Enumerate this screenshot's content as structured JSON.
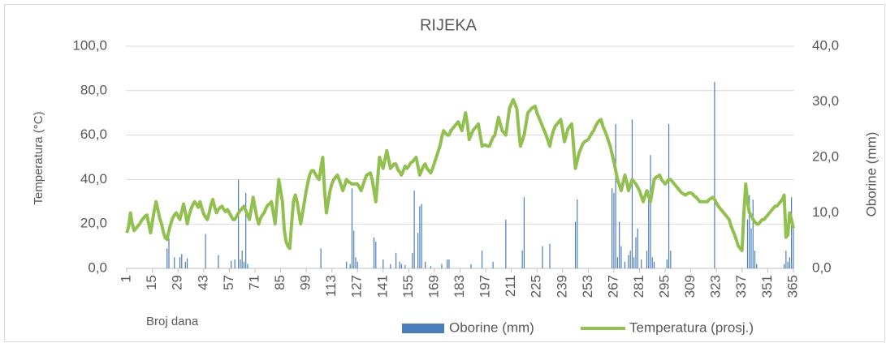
{
  "chart_data": {
    "type": "combo",
    "title": "RIJEKA",
    "y_label": "Temperatura (°C)",
    "y2_label": "Oborine (mm)",
    "x_label": "Broj dana",
    "grid": true,
    "legend": "bottom",
    "xlim": [
      0.5,
      365.5
    ],
    "xticks": [
      1,
      15,
      29,
      43,
      57,
      71,
      85,
      99,
      113,
      127,
      141,
      155,
      169,
      183,
      197,
      211,
      225,
      239,
      253,
      267,
      281,
      295,
      309,
      323,
      337,
      351,
      365
    ],
    "ylim": [
      0,
      100
    ],
    "yticks": [
      {
        "value": 0,
        "label": "0,0"
      },
      {
        "value": 20,
        "label": "20,0"
      },
      {
        "value": 40,
        "label": "40,0"
      },
      {
        "value": 60,
        "label": "60,0"
      },
      {
        "value": 80,
        "label": "80,0"
      },
      {
        "value": 100,
        "label": "100,0"
      }
    ],
    "y2lim": [
      0,
      40
    ],
    "y2ticks": [
      {
        "value": 0,
        "label": "0,0"
      },
      {
        "value": 10,
        "label": "10,0"
      },
      {
        "value": 20,
        "label": "20,0"
      },
      {
        "value": 30,
        "label": "30,0"
      },
      {
        "value": 40,
        "label": "40,0"
      }
    ],
    "x": [
      1,
      2,
      3,
      4,
      5,
      6,
      7,
      8,
      9,
      10,
      11,
      12,
      13,
      14,
      15,
      16,
      17,
      18,
      19,
      20,
      21,
      22,
      23,
      24,
      25,
      26,
      27,
      28,
      29,
      30,
      31,
      32,
      33,
      34,
      35,
      36,
      37,
      38,
      39,
      40,
      41,
      42,
      43,
      44,
      45,
      46,
      47,
      48,
      49,
      50,
      51,
      52,
      53,
      54,
      55,
      56,
      57,
      58,
      59,
      60,
      61,
      62,
      63,
      64,
      65,
      66,
      67,
      68,
      69,
      70,
      71,
      72,
      73,
      74,
      75,
      76,
      77,
      78,
      79,
      80,
      81,
      82,
      83,
      84,
      85,
      86,
      87,
      88,
      89,
      90,
      91,
      92,
      93,
      94,
      95,
      96,
      97,
      98,
      99,
      100,
      101,
      102,
      103,
      104,
      105,
      106,
      107,
      108,
      109,
      110,
      111,
      112,
      113,
      114,
      115,
      116,
      117,
      118,
      119,
      120,
      121,
      122,
      123,
      124,
      125,
      126,
      127,
      128,
      129,
      130,
      131,
      132,
      133,
      134,
      135,
      136,
      137,
      138,
      139,
      140,
      141,
      142,
      143,
      144,
      145,
      146,
      147,
      148,
      149,
      150,
      151,
      152,
      153,
      154,
      155,
      156,
      157,
      158,
      159,
      160,
      161,
      162,
      163,
      164,
      165,
      166,
      167,
      168,
      169,
      170,
      171,
      172,
      173,
      174,
      175,
      176,
      177,
      178,
      179,
      180,
      181,
      182,
      183,
      184,
      185,
      186,
      187,
      188,
      189,
      190,
      191,
      192,
      193,
      194,
      195,
      196,
      197,
      198,
      199,
      200,
      201,
      202,
      203,
      204,
      205,
      206,
      207,
      208,
      209,
      210,
      211,
      212,
      213,
      214,
      215,
      216,
      217,
      218,
      219,
      220,
      221,
      222,
      223,
      224,
      225,
      226,
      227,
      228,
      229,
      230,
      231,
      232,
      233,
      234,
      235,
      236,
      237,
      238,
      239,
      240,
      241,
      242,
      243,
      244,
      245,
      246,
      247,
      248,
      249,
      250,
      251,
      252,
      253,
      254,
      255,
      256,
      257,
      258,
      259,
      260,
      261,
      262,
      263,
      264,
      265,
      266,
      267,
      268,
      269,
      270,
      271,
      272,
      273,
      274,
      275,
      276,
      277,
      278,
      279,
      280,
      281,
      282,
      283,
      284,
      285,
      286,
      287,
      288,
      289,
      290,
      291,
      292,
      293,
      294,
      295,
      296,
      297,
      298,
      299,
      300,
      301,
      302,
      303,
      304,
      305,
      306,
      307,
      308,
      309,
      310,
      311,
      312,
      313,
      314,
      315,
      316,
      317,
      318,
      319,
      320,
      321,
      322,
      323,
      324,
      325,
      326,
      327,
      328,
      329,
      330,
      331,
      332,
      333,
      334,
      335,
      336,
      337,
      338,
      339,
      340,
      341,
      342,
      343,
      344,
      345,
      346,
      347,
      348,
      349,
      350,
      351,
      352,
      353,
      354,
      355,
      356,
      357,
      358,
      359,
      360,
      361,
      362,
      363,
      364,
      365
    ],
    "series": [
      {
        "name": "Oborine (mm)",
        "type": "bar",
        "color": "#4a7ebb",
        "values": [
          0,
          0,
          0,
          0,
          0,
          0,
          0,
          0,
          0,
          0,
          0,
          0,
          0,
          0,
          0,
          0,
          0,
          0,
          0,
          0,
          0,
          0,
          9,
          13.5,
          0,
          0,
          5,
          0,
          0,
          5,
          6.5,
          0,
          3,
          4.5,
          0,
          0,
          0,
          0,
          0,
          0,
          0,
          0,
          0,
          15.5,
          0,
          0,
          0,
          0,
          0,
          0,
          6,
          0,
          0,
          0,
          0,
          0,
          0,
          3.5,
          0,
          4,
          0,
          40,
          4,
          8,
          3,
          34,
          2,
          0,
          0,
          0,
          0,
          0,
          0,
          0,
          0,
          0,
          0,
          0,
          0,
          0,
          0,
          0,
          0,
          0,
          0,
          0,
          0,
          0,
          0,
          0,
          0,
          0,
          0,
          0,
          0,
          0,
          0,
          0,
          0,
          0,
          0,
          0,
          0,
          0,
          0,
          0,
          9,
          0,
          0,
          0,
          0,
          0,
          0,
          0,
          0,
          0,
          0,
          0,
          0,
          0,
          3,
          0,
          2,
          36,
          17,
          5,
          3,
          0,
          0,
          0,
          0,
          0,
          0,
          0,
          0,
          14,
          12,
          0,
          0,
          0,
          4,
          0,
          0,
          0,
          2,
          0,
          0,
          7,
          0,
          3,
          2,
          0,
          1.5,
          0,
          0,
          0,
          7,
          35,
          0,
          16,
          28,
          29,
          0,
          3,
          0,
          0,
          1,
          0,
          0,
          0,
          0,
          0,
          2,
          0,
          0,
          4,
          4,
          0,
          0,
          0,
          0,
          0,
          0,
          0,
          0,
          0,
          0,
          0,
          2,
          0,
          0,
          0,
          0,
          0,
          8,
          0,
          0,
          0,
          0,
          0,
          3,
          0,
          0,
          0,
          0,
          0,
          0,
          22,
          0,
          0,
          0,
          0,
          0,
          0,
          0,
          0,
          8,
          32,
          0,
          0,
          0,
          0,
          0,
          0,
          0,
          0,
          0,
          10,
          0,
          0,
          0,
          11,
          0,
          0,
          0,
          0,
          0,
          0,
          0,
          0,
          0,
          0,
          0,
          0,
          0,
          21,
          31,
          0,
          0,
          0,
          0,
          0,
          0,
          0,
          0,
          0,
          0,
          0,
          0,
          0,
          0,
          0,
          0,
          0,
          0,
          36,
          34,
          65,
          5,
          21,
          10,
          0,
          3,
          0,
          6,
          8,
          67,
          5,
          14,
          18,
          0,
          4,
          0,
          0,
          8,
          35,
          51,
          5,
          3,
          0,
          0,
          0,
          0,
          0,
          0,
          4,
          65,
          8,
          0,
          0,
          0,
          0,
          0,
          0,
          0,
          0,
          0,
          0,
          0,
          0,
          0,
          0,
          0,
          0,
          0,
          0,
          0,
          0,
          0,
          0,
          0,
          84,
          0,
          0,
          0,
          0,
          0,
          0,
          0,
          0,
          0,
          0,
          0,
          0,
          0,
          0,
          0,
          0,
          0,
          22,
          33,
          18,
          31,
          8,
          2,
          0,
          0,
          0,
          0,
          0,
          0,
          0,
          0,
          0,
          0,
          0,
          0,
          0,
          0,
          2,
          8,
          3,
          5,
          32,
          18
        ]
      },
      {
        "name": "Temperatura (prosj.)",
        "type": "line",
        "axis": "y2",
        "color": "#92c050",
        "values": [
          6.4,
          7.5,
          10.0,
          8.0,
          6.8,
          7.2,
          7.6,
          8.0,
          8.6,
          9.0,
          9.4,
          9.6,
          8.0,
          6.4,
          8.5,
          10.4,
          12.0,
          10.5,
          9.0,
          8.0,
          6.5,
          5.5,
          5.2,
          6.8,
          8.0,
          9.0,
          9.6,
          10.0,
          9.4,
          8.8,
          10.2,
          11.6,
          10.0,
          8.0,
          9.5,
          10.6,
          11.4,
          12.0,
          11.6,
          11.0,
          12.0,
          10.8,
          9.8,
          9.2,
          8.8,
          10.0,
          11.5,
          12.4,
          11.0,
          10.0,
          10.6,
          11.0,
          11.2,
          10.6,
          10.2,
          10.6,
          10.0,
          9.4,
          8.8,
          8.8,
          9.4,
          10.0,
          10.4,
          10.8,
          11.2,
          10.4,
          9.6,
          8.8,
          10.8,
          12.8,
          11.0,
          9.2,
          8.0,
          9.0,
          9.6,
          10.0,
          10.8,
          11.4,
          11.6,
          12.0,
          10.0,
          8.0,
          12.0,
          16.0,
          14.0,
          12.0,
          7.0,
          4.8,
          4.0,
          3.6,
          8.0,
          12.0,
          13.2,
          12.0,
          10.0,
          8.0,
          10.0,
          12.0,
          14.0,
          15.6,
          17.0,
          17.6,
          17.6,
          17.0,
          16.4,
          16.0,
          18.0,
          20.0,
          14.0,
          10.0,
          12.0,
          14.0,
          15.2,
          16.0,
          16.4,
          16.8,
          16.0,
          15.0,
          14.0,
          15.0,
          16.0,
          15.6,
          15.4,
          15.2,
          15.2,
          15.2,
          15.2,
          14.6,
          14.0,
          15.0,
          16.0,
          16.8,
          17.0,
          17.2,
          16.0,
          14.0,
          12.0,
          16.0,
          20.0,
          19.0,
          18.0,
          19.6,
          21.2,
          19.6,
          18.0,
          18.4,
          18.8,
          18.8,
          17.8,
          17.4,
          16.8,
          17.6,
          18.4,
          18.0,
          18.4,
          19.0,
          19.2,
          19.6,
          20.0,
          18.4,
          16.8,
          17.6,
          18.4,
          18.8,
          18.0,
          17.6,
          17.2,
          18.0,
          19.0,
          20.0,
          21.0,
          22.0,
          23.6,
          24.8,
          24.4,
          24.0,
          24.0,
          24.8,
          25.2,
          25.6,
          26.0,
          26.4,
          25.6,
          24.8,
          26.4,
          28.0,
          26.0,
          23.2,
          24.0,
          24.8,
          25.2,
          25.6,
          26.0,
          24.0,
          22.0,
          22.2,
          22.2,
          22.0,
          22.0,
          22.8,
          23.6,
          24.0,
          25.6,
          27.2,
          26.0,
          24.8,
          24.4,
          24.0,
          26.4,
          28.8,
          29.6,
          30.4,
          29.6,
          28.8,
          25.0,
          22.0,
          23.0,
          24.0,
          26.0,
          28.0,
          28.4,
          28.8,
          29.0,
          29.2,
          28.0,
          27.2,
          26.4,
          25.6,
          24.8,
          24.0,
          23.0,
          22.0,
          23.6,
          24.8,
          25.6,
          26.0,
          26.4,
          26.8,
          25.0,
          22.8,
          24.0,
          25.2,
          25.6,
          26.0,
          22.0,
          18.0,
          19.4,
          20.8,
          21.6,
          22.4,
          22.8,
          23.0,
          23.2,
          23.8,
          24.4,
          24.8,
          25.6,
          26.2,
          26.6,
          26.8,
          25.6,
          24.8,
          24.0,
          23.0,
          22.0,
          20.6,
          19.2,
          17.6,
          16.0,
          15.0,
          14.0,
          15.4,
          16.8,
          15.6,
          14.0,
          15.0,
          16.0,
          15.6,
          15.2,
          14.6,
          14.0,
          13.0,
          12.0,
          13.0,
          14.0,
          13.0,
          12.0,
          14.0,
          16.0,
          16.4,
          16.6,
          16.8,
          16.0,
          15.6,
          15.2,
          15.6,
          16.0,
          16.0,
          15.6,
          15.2,
          14.8,
          14.4,
          14.0,
          13.6,
          13.4,
          13.2,
          13.4,
          13.6,
          13.6,
          13.4,
          13.0,
          12.8,
          12.4,
          12.0,
          12.0,
          12.0,
          12.0,
          12.0,
          12.4,
          12.6,
          12.8,
          12.4,
          11.8,
          11.2,
          10.8,
          10.4,
          10.0,
          9.6,
          9.2,
          8.8,
          7.6,
          6.8,
          6.0,
          5.0,
          4.0,
          3.6,
          3.2,
          10.0,
          15.2,
          12.0,
          10.0,
          9.6,
          8.8,
          8.4,
          8.0,
          8.0,
          8.4,
          8.8,
          8.8,
          9.2,
          9.6,
          10.0,
          10.4,
          10.8,
          11.2,
          11.2,
          11.6,
          12.0,
          12.4,
          13.2,
          5.6,
          6.0,
          10.0,
          8.8,
          7.2
        ]
      }
    ]
  }
}
